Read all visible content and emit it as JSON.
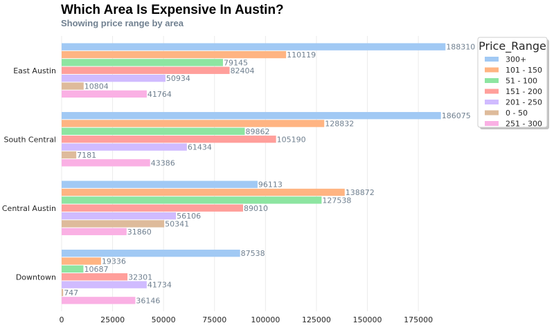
{
  "chart_data": {
    "type": "bar",
    "orientation": "horizontal",
    "title": "Which Area Is Expensive In Austin?",
    "subtitle": "Showing price range by area",
    "xlabel": "",
    "ylabel": "",
    "categories": [
      "East Austin",
      "South Central",
      "Central Austin",
      "Downtown"
    ],
    "xlim": [
      0,
      195000
    ],
    "xticks": [
      0,
      25000,
      50000,
      75000,
      100000,
      125000,
      150000,
      175000
    ],
    "grid": "vertical",
    "legend_title": "Price_Range",
    "legend_position": "top-right",
    "series": [
      {
        "name": "300+",
        "color": "#a1c9f4",
        "values": [
          188310,
          186075,
          96113,
          87538
        ]
      },
      {
        "name": "101 - 150",
        "color": "#ffb482",
        "values": [
          110119,
          128832,
          138872,
          19336
        ]
      },
      {
        "name": "51 - 100",
        "color": "#8de5a1",
        "values": [
          79145,
          89862,
          127538,
          10687
        ]
      },
      {
        "name": "151 - 200",
        "color": "#ff9f9b",
        "values": [
          82404,
          105190,
          89010,
          32301
        ]
      },
      {
        "name": "201 - 250",
        "color": "#d0bbff",
        "values": [
          50934,
          61434,
          56106,
          41734
        ]
      },
      {
        "name": "0 - 50",
        "color": "#debb9b",
        "values": [
          10804,
          7181,
          50341,
          747
        ]
      },
      {
        "name": "251 - 300",
        "color": "#fab0e4",
        "values": [
          41764,
          43386,
          31860,
          36146
        ]
      }
    ]
  }
}
